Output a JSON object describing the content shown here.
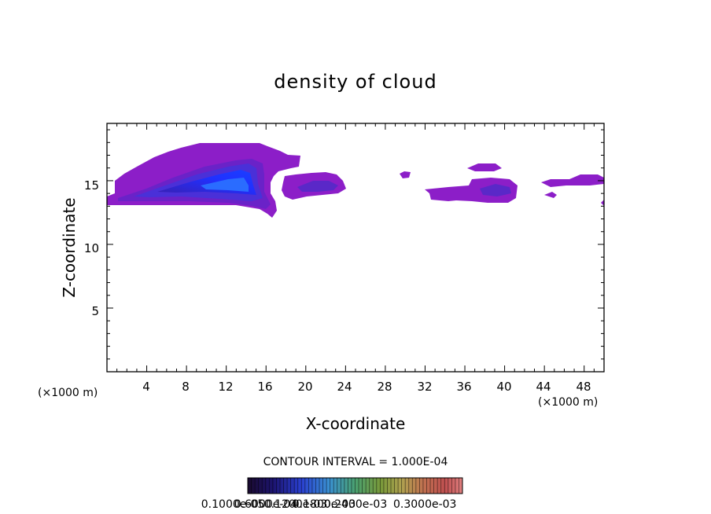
{
  "chart_data": {
    "type": "heatmap",
    "title": "density of cloud",
    "xlabel": "X-coordinate",
    "ylabel": "Z-coordinate",
    "x_unit": "(×1000 m)",
    "x_unit_right": "(×1000 m)",
    "xlim": [
      0,
      50
    ],
    "ylim": [
      0,
      19.5
    ],
    "xticks": [
      "4",
      "8",
      "12",
      "16",
      "20",
      "24",
      "28",
      "32",
      "36",
      "40",
      "44",
      "48"
    ],
    "yticks": [
      "5",
      "10",
      "15"
    ],
    "contour_interval_label": "CONTOUR INTERVAL = 1.000E-04",
    "colorbar_labels": [
      "0.1000e-05",
      "0.6000e-04",
      "0.1200e-03",
      "0.1800e-03",
      "0.2400e-03",
      "0.3000e-03"
    ],
    "colorbar_max_label": "0.3000e-03",
    "colorbar_colors": [
      "#1a0a2e",
      "#2a1a8a",
      "#3050ff",
      "#30a0e0",
      "#40c080",
      "#80d040",
      "#d0d040",
      "#e0a050",
      "#e06060",
      "#ff9090"
    ],
    "clouds": [
      {
        "x": [
          0,
          16.8
        ],
        "z_top": 17.0,
        "z_base": 13.4,
        "core": 0.00012
      },
      {
        "x": [
          17.0,
          23.8
        ],
        "z_top": 16.0,
        "z_base": 13.8,
        "core": 5e-05
      },
      {
        "x": [
          29.6,
          30.4
        ],
        "z_top": 16.0,
        "z_base": 15.4,
        "core": 1e-05
      },
      {
        "x": [
          32.0,
          41.0
        ],
        "z_top": 16.6,
        "z_base": 13.6,
        "core": 5e-05
      },
      {
        "x": [
          44.0,
          50.0
        ],
        "z_top": 15.9,
        "z_base": 13.5,
        "core": 2e-05
      }
    ]
  }
}
